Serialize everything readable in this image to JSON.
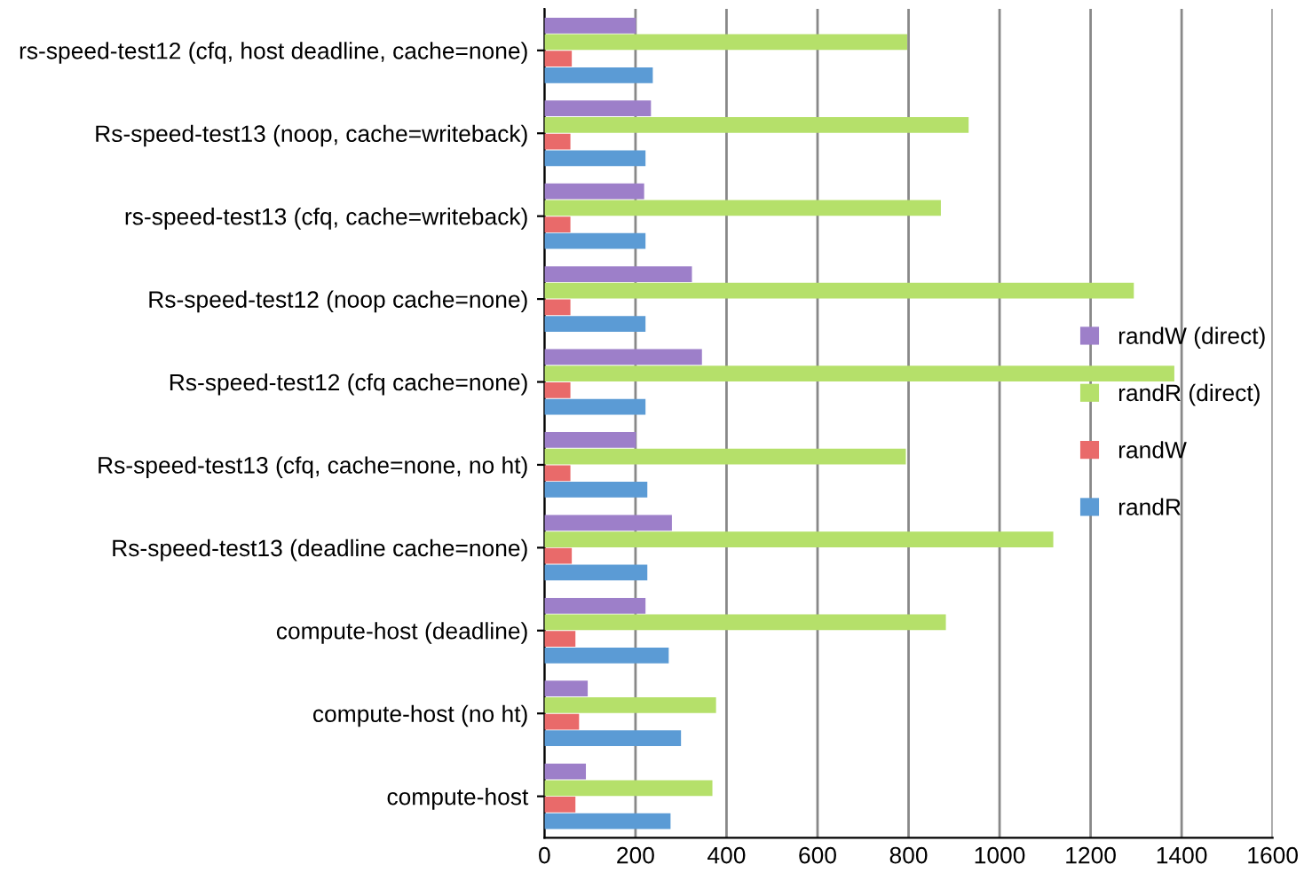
{
  "chart_data": {
    "type": "bar",
    "orientation": "horizontal",
    "categories": [
      "rs-speed-test12 (cfq, host deadline, cache=none)",
      "Rs-speed-test13 (noop, cache=writeback)",
      "rs-speed-test13 (cfq, cache=writeback)",
      "Rs-speed-test12 (noop cache=none)",
      "Rs-speed-test12 (cfq cache=none)",
      "Rs-speed-test13 (cfq, cache=none, no ht)",
      "Rs-speed-test13 (deadline cache=none)",
      "compute-host (deadline)",
      "compute-host (no ht)",
      "compute-host"
    ],
    "series": [
      {
        "name": "randR",
        "color": "#5b9bd5",
        "values": [
          238,
          222,
          222,
          222,
          222,
          226,
          226,
          273,
          300,
          277
        ]
      },
      {
        "name": "randW",
        "color": "#e96a6a",
        "values": [
          60,
          57,
          57,
          57,
          57,
          57,
          60,
          68,
          76,
          68
        ]
      },
      {
        "name": "randR (direct)",
        "color": "#b5e06a",
        "values": [
          797,
          932,
          871,
          1295,
          1384,
          794,
          1118,
          882,
          377,
          369
        ]
      },
      {
        "name": "randW (direct)",
        "color": "#9d7fc9",
        "values": [
          201,
          234,
          219,
          324,
          346,
          201,
          280,
          222,
          95,
          91
        ]
      }
    ],
    "xlim": [
      0,
      1600
    ],
    "xticks": [
      0,
      200,
      400,
      600,
      800,
      1000,
      1200,
      1400,
      1600
    ],
    "grid": "x",
    "legend": "right"
  }
}
